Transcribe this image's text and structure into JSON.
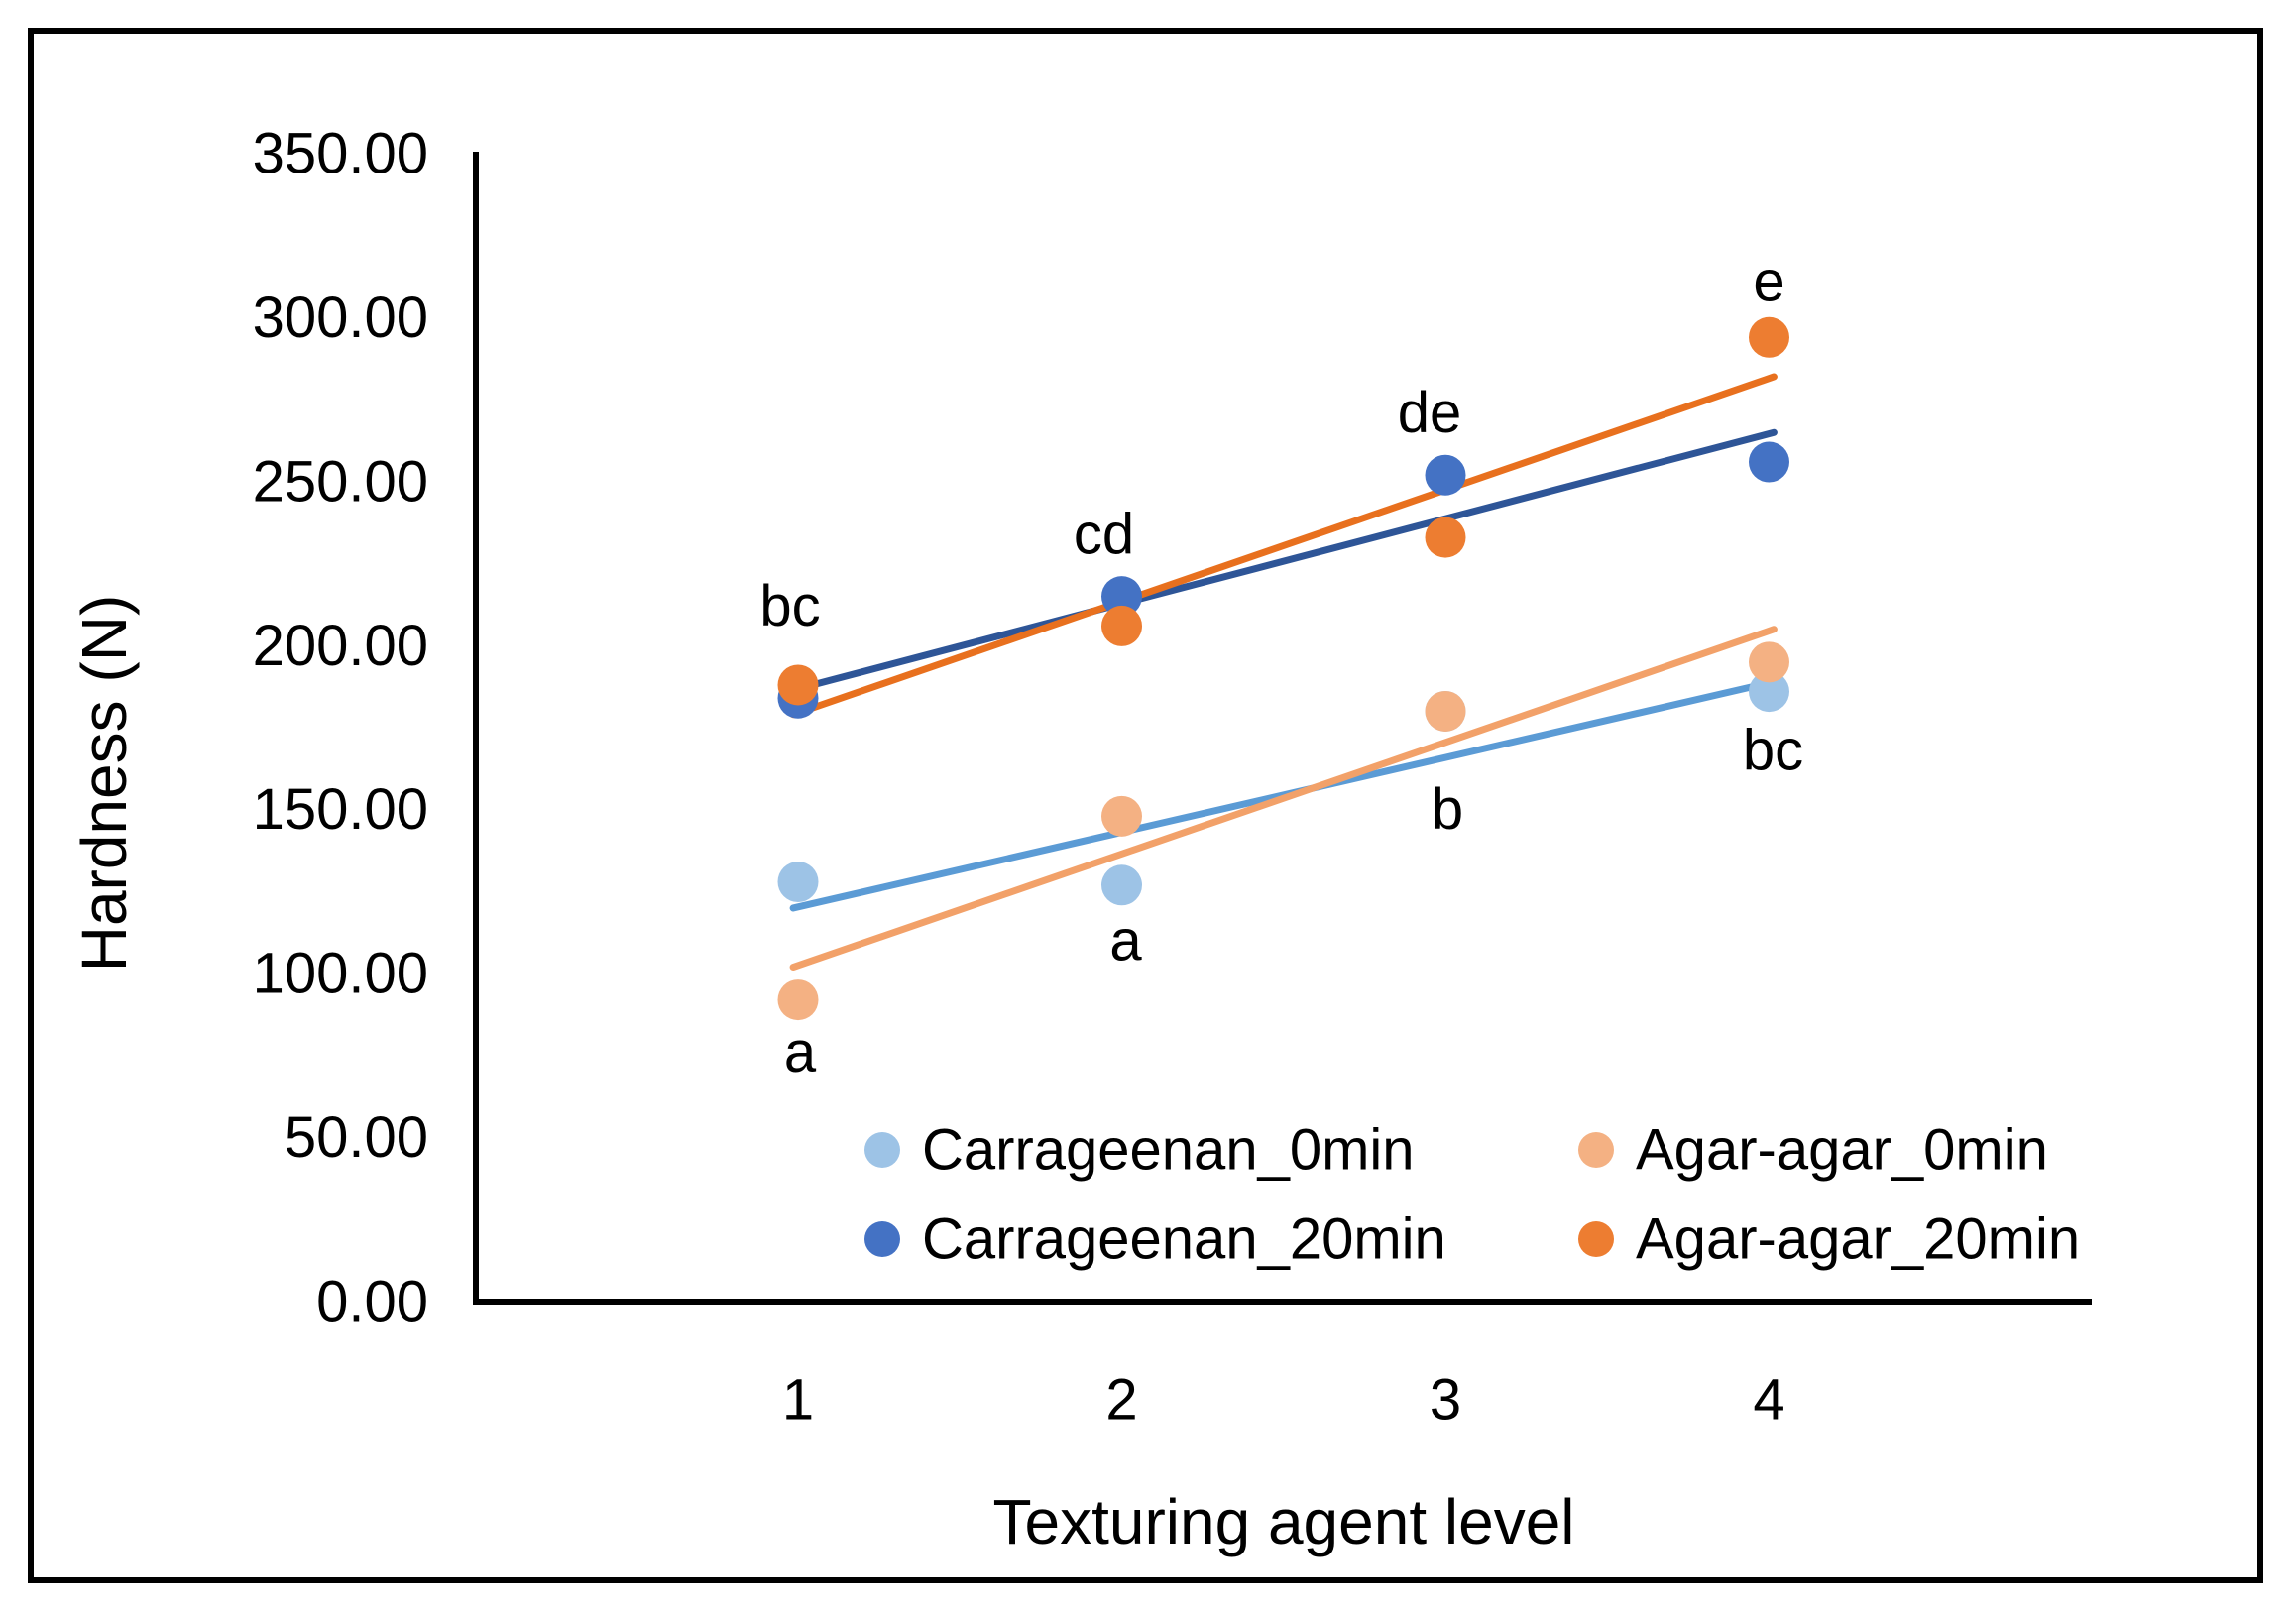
{
  "figure": {
    "background": "#FFFFFF",
    "border_color": "#000000",
    "axis_color": "#000000",
    "text_color": "#000000"
  },
  "chart_data": {
    "type": "scatter",
    "title": "",
    "xlabel": "Texturing agent level",
    "ylabel": "Hardness (N)",
    "ylim": [
      0,
      350
    ],
    "grid": false,
    "legend_position": "bottom-inside-two-columns",
    "yticks": [
      "350.00",
      "300.00",
      "250.00",
      "200.00",
      "150.00",
      "100.00",
      "50.00",
      "0.00"
    ],
    "x_categories": [
      "1",
      "2",
      "3",
      "4"
    ],
    "series": [
      {
        "name": "Carrageenan_0min",
        "marker_color": "#9DC3E6",
        "trend_color": "#5B9BD5",
        "x": [
          1,
          2,
          3,
          4
        ],
        "y": [
          128,
          127,
          180,
          186
        ],
        "trendline": {
          "x": [
            0.985,
            4.015
          ],
          "y": [
            120,
            189
          ]
        }
      },
      {
        "name": "Carrageenan_20min",
        "marker_color": "#4472C4",
        "trend_color": "#2E5597",
        "x": [
          1,
          2,
          3,
          4
        ],
        "y": [
          184,
          215,
          252,
          256
        ],
        "trendline": {
          "x": [
            0.985,
            4.015
          ],
          "y": [
            186.5,
            265
          ]
        }
      },
      {
        "name": "Agar-agar_0min",
        "marker_color": "#F4B183",
        "trend_color": "#F2A169",
        "x": [
          1,
          2,
          3,
          4
        ],
        "y": [
          92,
          148,
          180,
          195
        ],
        "trendline": {
          "x": [
            0.985,
            4.015
          ],
          "y": [
            102,
            205
          ]
        }
      },
      {
        "name": "Agar-agar_20min",
        "marker_color": "#ED7D31",
        "trend_color": "#E8701E",
        "x": [
          1,
          2,
          3,
          4
        ],
        "y": [
          188,
          206,
          233,
          294
        ],
        "trendline": {
          "x": [
            0.985,
            4.015
          ],
          "y": [
            179,
            282
          ]
        }
      }
    ],
    "annotations": [
      {
        "x": 1,
        "y": 212,
        "text": "bc",
        "dx": -8
      },
      {
        "x": 2,
        "y": 234,
        "text": "cd",
        "dx": -18
      },
      {
        "x": 3,
        "y": 271,
        "text": "de",
        "dx": -16
      },
      {
        "x": 4,
        "y": 311,
        "text": "e",
        "dx": 0
      },
      {
        "x": 1,
        "y": 76,
        "text": "a",
        "dx": 2
      },
      {
        "x": 2,
        "y": 110,
        "text": "a",
        "dx": 4
      },
      {
        "x": 3,
        "y": 150,
        "text": "b",
        "dx": 2
      },
      {
        "x": 4,
        "y": 168,
        "text": "bc",
        "dx": 4
      }
    ],
    "legend_rows": [
      [
        "Carrageenan_0min",
        "Agar-agar_0min"
      ],
      [
        "Carrageenan_20min",
        "Agar-agar_20min"
      ]
    ]
  }
}
